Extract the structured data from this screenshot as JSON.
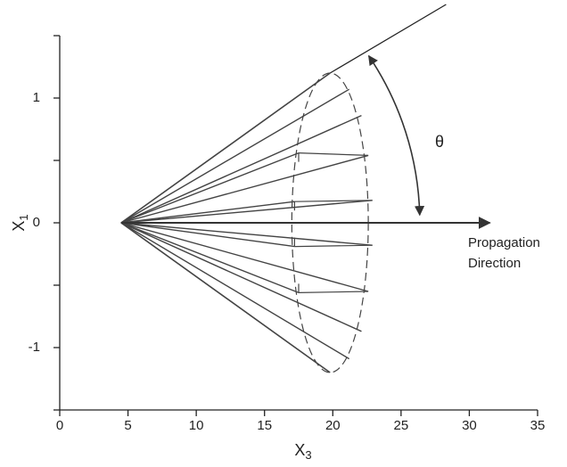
{
  "chart_data": {
    "type": "cone",
    "xlabel": "X",
    "xlabel_sub": "3",
    "ylabel": "X",
    "ylabel_sub": "1",
    "xlim": [
      0,
      35
    ],
    "xticks": [
      0,
      5,
      10,
      15,
      20,
      25,
      30,
      35
    ],
    "ylim": [
      -1.5,
      1.5
    ],
    "yticks": [
      -1,
      0,
      1
    ],
    "yminor_ticks": [
      -1.5,
      -0.5,
      0.5,
      1.5
    ],
    "apex": [
      4.5,
      0
    ],
    "rim": {
      "cx": 19.8,
      "rx": 2.8,
      "ry": 1.2
    },
    "front_rays": [
      [
        21.2,
        1.07
      ],
      [
        22.1,
        0.86
      ],
      [
        22.6,
        0.54
      ],
      [
        22.9,
        0.18
      ],
      [
        22.9,
        -0.18
      ],
      [
        22.6,
        -0.55
      ],
      [
        22.1,
        -0.87
      ],
      [
        21.2,
        -1.09
      ]
    ],
    "back_rays": [
      [
        17.5,
        0.56
      ],
      [
        17.2,
        0.17
      ],
      [
        17.2,
        -0.19
      ],
      [
        17.5,
        -0.56
      ]
    ],
    "cone_line_end": [
      28.3,
      1.75
    ],
    "propagation_arrow_end": [
      31.5,
      0
    ],
    "angle_label": "θ",
    "annotation": [
      "Propagation",
      "Direction"
    ],
    "color": "#444444"
  }
}
